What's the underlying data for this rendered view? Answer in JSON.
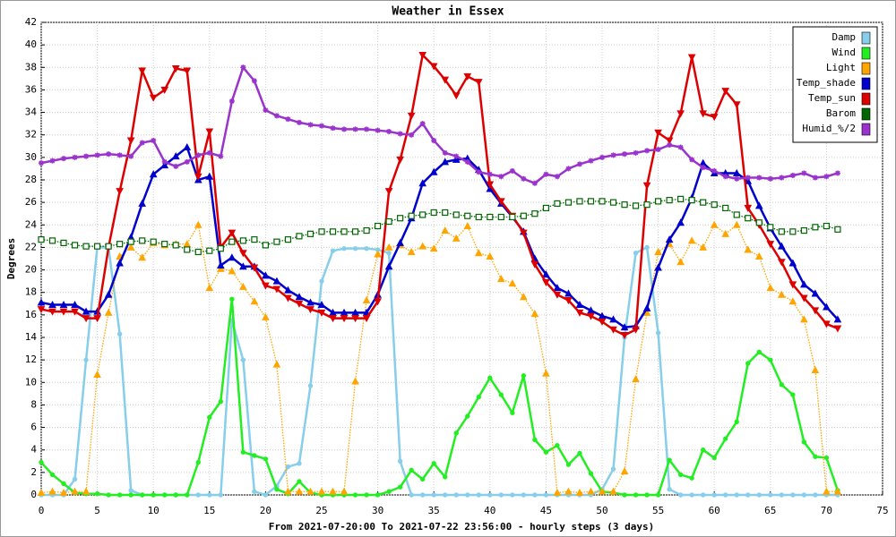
{
  "chart_data": {
    "type": "line",
    "title": "Weather in Essex",
    "x_label": "From 2021-07-20:00 To 2021-07-22 23:56:00 - hourly steps (3 days)",
    "y_label": "Degrees",
    "x": [
      0,
      1,
      2,
      3,
      4,
      5,
      6,
      7,
      8,
      9,
      10,
      11,
      12,
      13,
      14,
      15,
      16,
      17,
      18,
      19,
      20,
      21,
      22,
      23,
      24,
      25,
      26,
      27,
      28,
      29,
      30,
      31,
      32,
      33,
      34,
      35,
      36,
      37,
      38,
      39,
      40,
      41,
      42,
      43,
      44,
      45,
      46,
      47,
      48,
      49,
      50,
      51,
      52,
      53,
      54,
      55,
      56,
      57,
      58,
      59,
      60,
      61,
      62,
      63,
      64,
      65,
      66,
      67,
      68,
      69,
      70,
      71
    ],
    "xlim": [
      0,
      75
    ],
    "xticks": [
      0,
      5,
      10,
      15,
      20,
      25,
      30,
      35,
      40,
      45,
      50,
      55,
      60,
      65,
      70,
      75
    ],
    "ylim": [
      0,
      42
    ],
    "yticks": [
      0,
      2,
      4,
      6,
      8,
      10,
      12,
      14,
      16,
      18,
      20,
      22,
      24,
      26,
      28,
      30,
      32,
      34,
      36,
      38,
      40,
      42
    ],
    "grid": true,
    "legend": "upper right",
    "series": [
      {
        "name": "Damp",
        "color": "#87ceeb",
        "marker": "circle",
        "style": "solid",
        "values": [
          0,
          0,
          0,
          1.4,
          12,
          22,
          22,
          14.3,
          0.4,
          0,
          0,
          0,
          0,
          0,
          0,
          0,
          0,
          15.5,
          12,
          0.3,
          0,
          0.8,
          2.5,
          2.8,
          9.7,
          19,
          21.7,
          21.9,
          21.9,
          21.9,
          21.8,
          21.5,
          3,
          0,
          0,
          0,
          0,
          0,
          0,
          0,
          0,
          0,
          0,
          0,
          0,
          0,
          0,
          0,
          0,
          0,
          0.5,
          2.3,
          14,
          21.5,
          22,
          14.4,
          0.5,
          0,
          0,
          0,
          0,
          0,
          0,
          0,
          0,
          0,
          0,
          0,
          0,
          0,
          0,
          0
        ]
      },
      {
        "name": "Wind",
        "color": "#22ee22",
        "marker": "circle",
        "style": "solid",
        "values": [
          2.9,
          1.8,
          1,
          0.2,
          0.1,
          0.1,
          0,
          0,
          0,
          0,
          0,
          0,
          0,
          0,
          2.9,
          6.9,
          8.3,
          17.4,
          3.8,
          3.5,
          3.2,
          0.5,
          0.1,
          1.2,
          0.2,
          0,
          0,
          0,
          0,
          0,
          0,
          0.3,
          0.7,
          2.2,
          1.4,
          2.8,
          1.6,
          5.5,
          7,
          8.7,
          10.4,
          8.9,
          7.3,
          10.6,
          4.9,
          3.8,
          4.4,
          2.7,
          3.7,
          1.9,
          0.3,
          0.2,
          0,
          0,
          0,
          0,
          3.1,
          1.8,
          1.5,
          4,
          3.3,
          5,
          6.5,
          11.7,
          12.7,
          12,
          9.8,
          8.9,
          4.7,
          3.4,
          3.3,
          0.4
        ]
      },
      {
        "name": "Light",
        "color": "#ffa500",
        "marker": "triangle",
        "style": "dotted",
        "values": [
          0.2,
          0.3,
          0.2,
          0.3,
          0.3,
          10.7,
          16.2,
          21.2,
          22,
          21.1,
          22.4,
          22.2,
          22.3,
          22.3,
          24,
          18.4,
          20.1,
          19.9,
          18.5,
          17.2,
          15.8,
          11.6,
          0.3,
          0.3,
          0.3,
          0.3,
          0.3,
          0.3,
          10.1,
          17.3,
          21.4,
          22,
          22.2,
          21.6,
          22.1,
          21.9,
          23.5,
          22.8,
          23.9,
          21.5,
          21.2,
          19.2,
          18.8,
          17.6,
          16.1,
          10.8,
          0.2,
          0.3,
          0.2,
          0.3,
          0.3,
          0.3,
          2.1,
          10.3,
          16.2,
          21.6,
          22.3,
          20.7,
          22.6,
          22,
          24,
          23.2,
          24,
          21.8,
          21.2,
          18.4,
          17.8,
          17.2,
          15.6,
          11.1,
          0.3,
          0.3
        ]
      },
      {
        "name": "Temp_shade",
        "color": "#0000cc",
        "marker": "triangle",
        "style": "solid",
        "values": [
          17.1,
          16.9,
          16.9,
          16.9,
          16.3,
          16.3,
          17.8,
          20.6,
          22.9,
          25.9,
          28.5,
          29.3,
          30.1,
          30.9,
          28,
          28.3,
          20.4,
          21.1,
          20.3,
          20.3,
          19.5,
          19,
          18.2,
          17.6,
          17.1,
          16.9,
          16.2,
          16.2,
          16.2,
          16.2,
          17.8,
          20.3,
          22.4,
          24.6,
          27.7,
          28.7,
          29.6,
          29.8,
          29.9,
          28.9,
          27.2,
          25.9,
          24.7,
          23.4,
          21,
          19.6,
          18.4,
          17.9,
          16.9,
          16.4,
          15.9,
          15.6,
          14.9,
          15,
          16.6,
          20.2,
          22.7,
          24.2,
          26.4,
          29.5,
          28.6,
          28.6,
          28.6,
          27.9,
          25.7,
          23.7,
          22.1,
          20.6,
          18.7,
          17.9,
          16.7,
          15.6
        ]
      },
      {
        "name": "Temp_sun",
        "color": "#dd0000",
        "marker": "down",
        "style": "solid",
        "values": [
          16.5,
          16.3,
          16.3,
          16.3,
          15.7,
          15.7,
          22,
          27,
          31.5,
          37.7,
          35.3,
          36,
          37.9,
          37.7,
          28.3,
          32.3,
          22,
          23.3,
          21.5,
          20.2,
          18.6,
          18.3,
          17.5,
          17,
          16.5,
          16.2,
          15.7,
          15.7,
          15.7,
          15.7,
          17.2,
          27,
          29.8,
          33.7,
          39.1,
          38.1,
          36.9,
          35.5,
          37.2,
          36.7,
          27.6,
          26.1,
          24.8,
          23.3,
          20.5,
          18.9,
          17.8,
          17.3,
          16.2,
          15.9,
          15.4,
          14.7,
          14.2,
          14.7,
          27.5,
          32.2,
          31.5,
          33.9,
          38.9,
          33.9,
          33.6,
          35.9,
          34.7,
          25.5,
          24,
          22.3,
          20.7,
          18.7,
          17.5,
          16.4,
          15.2,
          14.8
        ]
      },
      {
        "name": "Barom",
        "color": "#006600",
        "marker": "square",
        "style": "dotted",
        "values": [
          22.7,
          22.6,
          22.4,
          22.2,
          22.1,
          22.1,
          22.1,
          22.3,
          22.5,
          22.6,
          22.5,
          22.3,
          22.2,
          21.8,
          21.6,
          21.7,
          21.9,
          22.5,
          22.6,
          22.7,
          22.2,
          22.5,
          22.7,
          23,
          23.2,
          23.4,
          23.4,
          23.4,
          23.4,
          23.5,
          23.9,
          24.3,
          24.6,
          24.8,
          24.9,
          25.1,
          25.1,
          24.9,
          24.8,
          24.7,
          24.7,
          24.7,
          24.7,
          24.8,
          25,
          25.5,
          25.9,
          26,
          26.1,
          26.1,
          26.1,
          26,
          25.8,
          25.7,
          25.8,
          26.1,
          26.2,
          26.3,
          26.2,
          26,
          25.8,
          25.5,
          24.9,
          24.6,
          24.2,
          23.8,
          23.4,
          23.4,
          23.5,
          23.8,
          23.9,
          23.6
        ]
      },
      {
        "name": "Humid_%/2",
        "color": "#9933cc",
        "marker": "star",
        "style": "solid",
        "values": [
          29.5,
          29.7,
          29.9,
          30,
          30.1,
          30.2,
          30.3,
          30.2,
          30.1,
          31.3,
          31.5,
          29.6,
          29.2,
          29.6,
          30.2,
          30.4,
          30.1,
          35,
          38,
          36.8,
          34.2,
          33.7,
          33.4,
          33.1,
          32.9,
          32.8,
          32.6,
          32.5,
          32.5,
          32.5,
          32.4,
          32.3,
          32.1,
          32,
          33,
          31.5,
          30.4,
          30.1,
          29.6,
          28.7,
          28.5,
          28.3,
          28.8,
          28.1,
          27.7,
          28.5,
          28.3,
          29,
          29.4,
          29.7,
          30,
          30.2,
          30.3,
          30.4,
          30.6,
          30.7,
          31.1,
          30.9,
          29.8,
          29.1,
          28.8,
          28.3,
          28.1,
          28.2,
          28.2,
          28.1,
          28.2,
          28.4,
          28.6,
          28.2,
          28.3,
          28.6
        ]
      }
    ]
  }
}
